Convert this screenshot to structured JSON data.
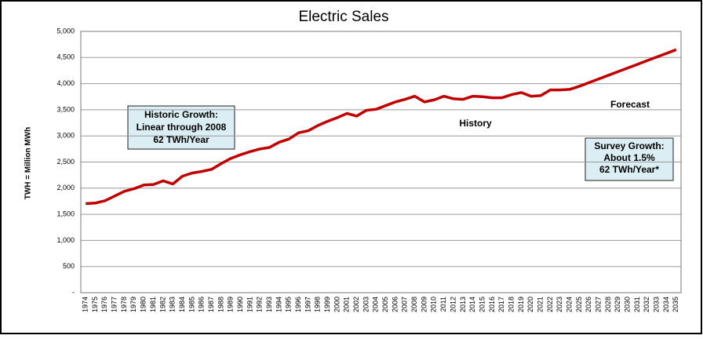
{
  "chart_data": {
    "type": "line",
    "title": "Electric Sales",
    "y_label": "TWH = Million MWh",
    "categories": [
      "1974",
      "1975",
      "1976",
      "1977",
      "1978",
      "1979",
      "1980",
      "1981",
      "1982",
      "1983",
      "1984",
      "1985",
      "1986",
      "1987",
      "1988",
      "1989",
      "1990",
      "1991",
      "1992",
      "1993",
      "1994",
      "1995",
      "1996",
      "1997",
      "1998",
      "1999",
      "2000",
      "2001",
      "2002",
      "2003",
      "2004",
      "2005",
      "2006",
      "2007",
      "2008",
      "2009",
      "2010",
      "2011",
      "2012",
      "2013",
      "2014",
      "2015",
      "2016",
      "2017",
      "2018",
      "2019",
      "2020",
      "2021",
      "2022",
      "2023",
      "2024",
      "2025",
      "2026",
      "2027",
      "2028",
      "2029",
      "2030",
      "2031",
      "2032",
      "2033",
      "2034",
      "2035"
    ],
    "series": [
      {
        "color": "#c00000",
        "values": [
          1705,
          1715,
          1760,
          1850,
          1940,
          1990,
          2060,
          2070,
          2140,
          2080,
          2230,
          2290,
          2320,
          2360,
          2470,
          2570,
          2640,
          2700,
          2750,
          2780,
          2880,
          2940,
          3060,
          3100,
          3200,
          3280,
          3350,
          3430,
          3380,
          3490,
          3510,
          3580,
          3650,
          3700,
          3760,
          3650,
          3690,
          3760,
          3710,
          3700,
          3760,
          3750,
          3730,
          3730,
          3790,
          3830,
          3760,
          3770,
          3880,
          3880,
          3890,
          3950,
          4020,
          4090,
          4160,
          4230,
          4300,
          4370,
          4440,
          4510,
          4580,
          4650
        ]
      }
    ],
    "ylim": [
      0,
      5000
    ],
    "yticks": [
      {
        "value": 0,
        "label": "-"
      },
      500,
      {
        "value": 1000,
        "label": "1,000"
      },
      {
        "value": 1500,
        "label": "1,500"
      },
      {
        "value": 2000,
        "label": "2,000"
      },
      {
        "value": 2500,
        "label": "2,500"
      },
      {
        "value": 3000,
        "label": "3,000"
      },
      {
        "value": 3500,
        "label": "3,500"
      },
      {
        "value": 4000,
        "label": "4,000"
      },
      {
        "value": 4500,
        "label": "4,500"
      },
      {
        "value": 5000,
        "label": "5,000"
      }
    ],
    "grid": true,
    "annotations": [
      {
        "lines": [
          "Historic Growth:",
          "Linear through 2008",
          "62 TWh/Year"
        ]
      },
      {
        "lines": [
          "History"
        ]
      },
      {
        "lines": [
          "Forecast"
        ]
      },
      {
        "lines": [
          "Survey Growth:",
          "About 1.5%",
          "62 TWh/Year*"
        ]
      }
    ]
  }
}
